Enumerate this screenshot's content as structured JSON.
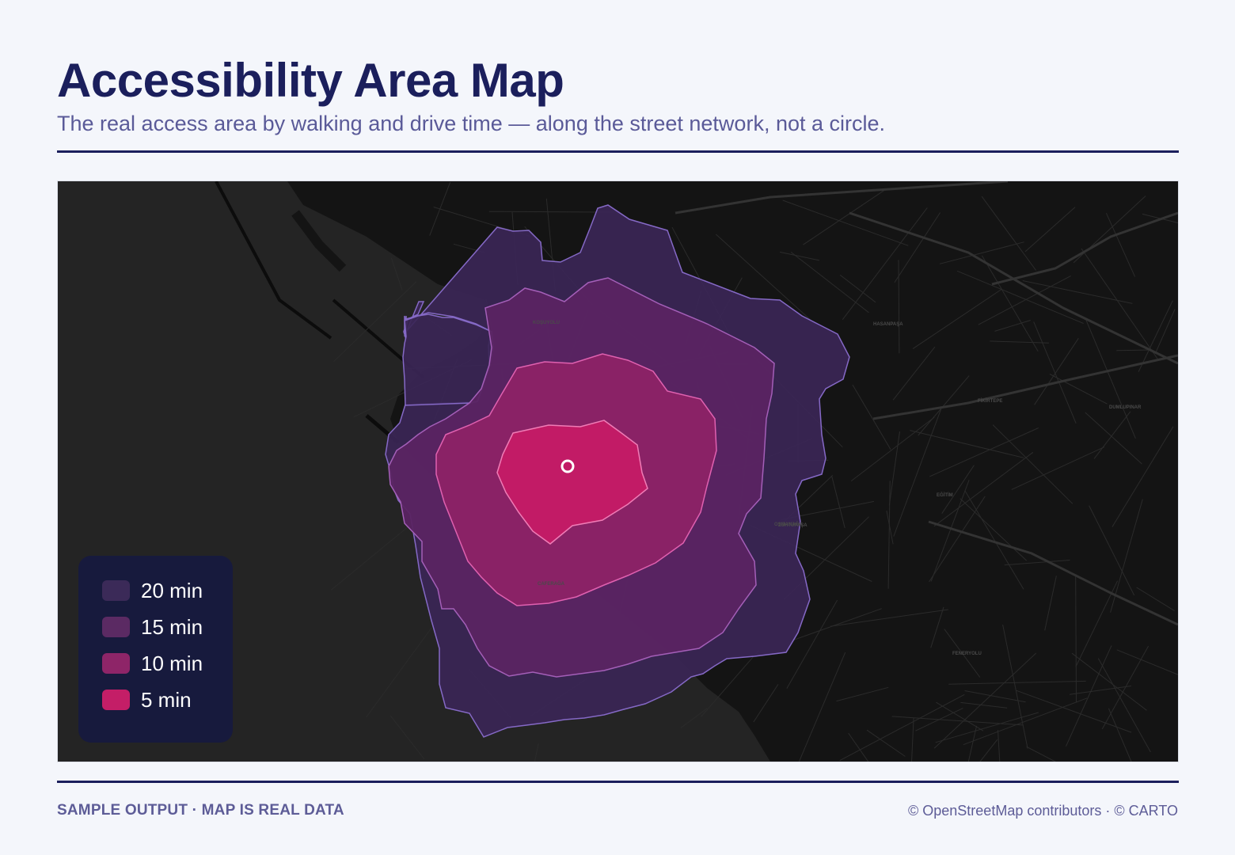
{
  "header": {
    "title": "Accessibility Area Map",
    "subtitle": "The real access area by walking and drive time — along the street network, not a circle."
  },
  "map": {
    "background_color": "#222222",
    "land_color": "#141414",
    "origin_marker": "circle-marker-icon",
    "place_labels": [
      "HASANPAŞA",
      "FİKİRTEPE",
      "DUMLUPINAR",
      "EĞİTİM",
      "ZÜHTÜPAŞA",
      "FENERYOLU",
      "KOŞUYOLU",
      "CAFERAĞA",
      "OSMANAĞA"
    ],
    "isochrones": [
      {
        "minutes": 20,
        "color": "#3b2656"
      },
      {
        "minutes": 15,
        "color": "#5a2462"
      },
      {
        "minutes": 10,
        "color": "#8d2266"
      },
      {
        "minutes": 5,
        "color": "#c41b66"
      }
    ]
  },
  "legend": {
    "items": [
      {
        "label": "20 min",
        "color": "#3b2a58"
      },
      {
        "label": "15 min",
        "color": "#5b2a63"
      },
      {
        "label": "10 min",
        "color": "#8e2568"
      },
      {
        "label": "5 min",
        "color": "#c41e67"
      }
    ]
  },
  "footer": {
    "left": "SAMPLE OUTPUT · MAP IS REAL DATA",
    "right": "© OpenStreetMap contributors · © CARTO"
  }
}
